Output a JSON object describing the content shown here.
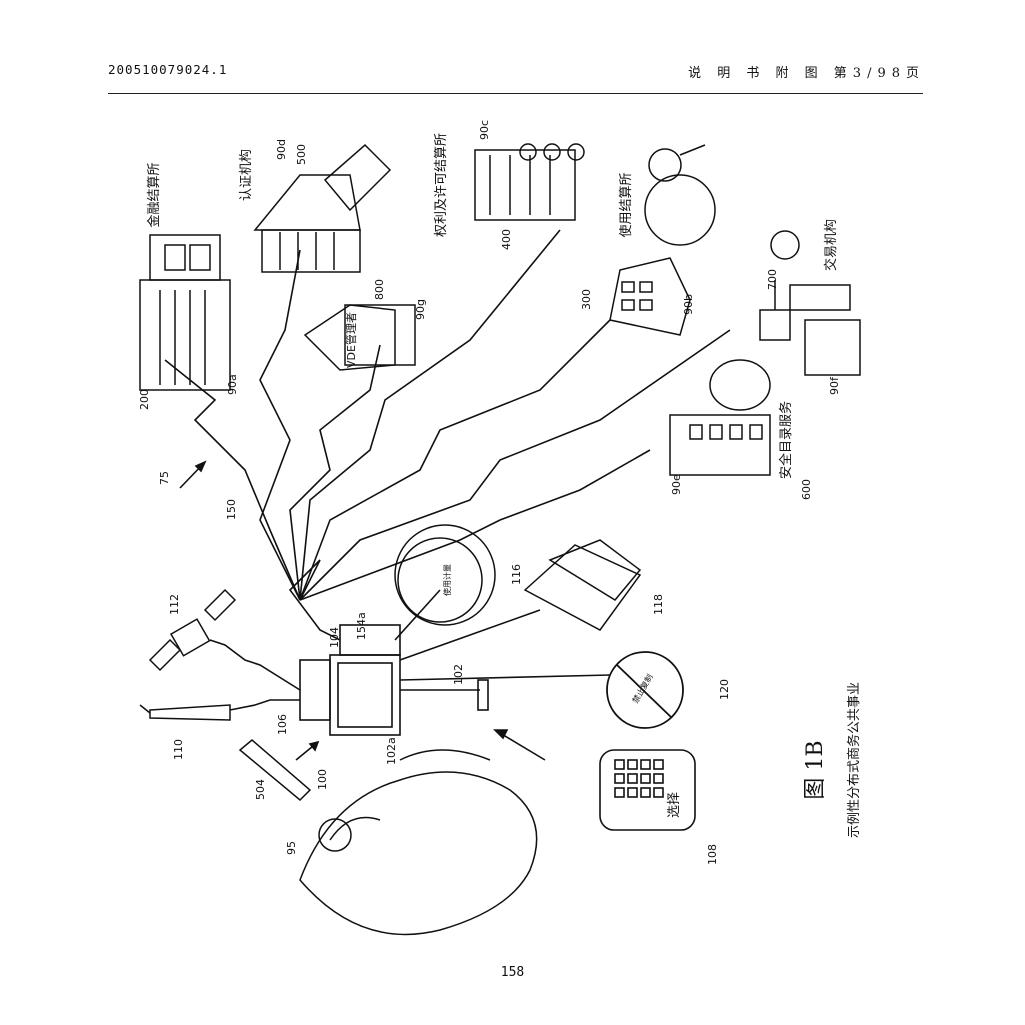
{
  "header": {
    "doc_number": "200510079024.1",
    "section_title": "说 明 书 附 图",
    "page_of": "第3/98页"
  },
  "figure": {
    "caption_title": "图 1B",
    "caption_text": "示例性分布式商务公共事业",
    "entities": {
      "financial_clearinghouse": "金融结算所",
      "certifying_authority": "认证机构",
      "rights_clearinghouse": "权利及许可结算所",
      "usage_clearinghouse": "使用结算所",
      "transaction_authority": "交易机构",
      "secure_directory": "安全目录服务",
      "vde_admin": "VDE管理者",
      "select_label": "选择",
      "meter_label": "使用计量",
      "no_copy_label": "禁止复制"
    },
    "refs": {
      "r75": "75",
      "r90a": "90a",
      "r90b": "90b",
      "r90c": "90c",
      "r90d": "90d",
      "r90e": "90e",
      "r90f": "90f",
      "r90g": "90g",
      "r95": "95",
      "r100": "100",
      "r102": "102",
      "r102a": "102a",
      "r104": "104",
      "r106": "106",
      "r108": "108",
      "r110": "110",
      "r112": "112",
      "r116": "116",
      "r118": "118",
      "r120": "120",
      "r150": "150",
      "r154a": "154a",
      "r200": "200",
      "r300": "300",
      "r400": "400",
      "r500": "500",
      "r504": "504",
      "r600": "600",
      "r700": "700",
      "r800": "800"
    }
  },
  "page_number": "158"
}
